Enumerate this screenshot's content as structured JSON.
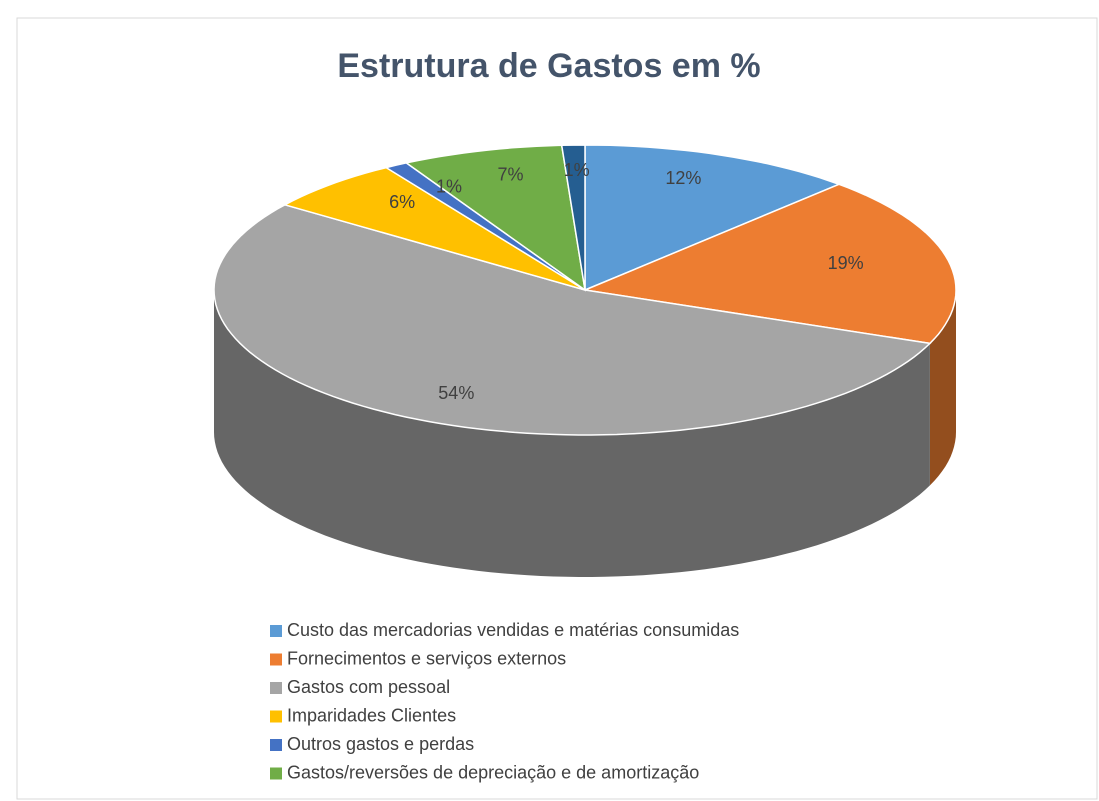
{
  "chart_data": {
    "type": "pie",
    "title": "Estrutura de Gastos em %",
    "categories": [
      "Custo das mercadorias vendidas e matérias consumidas",
      "Fornecimentos e serviços externos",
      "Gastos com pessoal",
      "Imparidades Clientes",
      "Outros gastos e perdas",
      "Gastos/reversões de depreciação e de amortização",
      null
    ],
    "values": [
      12,
      19,
      54,
      6,
      1,
      7,
      1
    ],
    "value_labels": [
      "12%",
      "19%",
      "54%",
      "6%",
      "1%",
      "7%",
      "1%"
    ],
    "colors": [
      "#5B9BD5",
      "#ED7D31",
      "#A5A5A5",
      "#FFC000",
      "#4472C4",
      "#70AD47",
      "#255E91"
    ],
    "legend": "bottom"
  }
}
